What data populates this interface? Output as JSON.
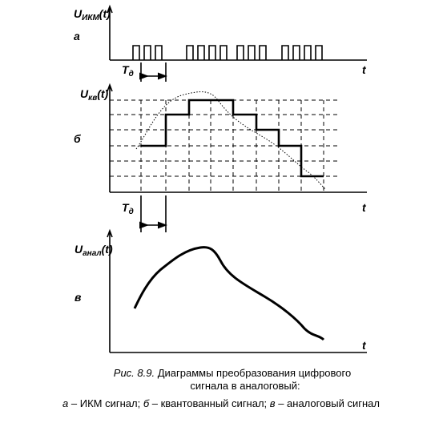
{
  "panels": [
    {
      "y_label": {
        "main": "U",
        "sub": "ИКМ",
        "arg": "(t)"
      },
      "letter": "а",
      "period_label": {
        "main": "T",
        "sub": "д"
      },
      "x_label": "t"
    },
    {
      "y_label": {
        "main": "U",
        "sub": "кв",
        "arg": "(t)"
      },
      "letter": "б",
      "period_label": {
        "main": "T",
        "sub": "д"
      },
      "x_label": "t"
    },
    {
      "y_label": {
        "main": "U",
        "sub": "анал",
        "arg": "(t)"
      },
      "letter": "в",
      "x_label": "t"
    }
  ],
  "caption": {
    "figure": "Рис. 8.9.",
    "lines": [
      "Диаграммы преобразования цифрового",
      "сигнала в аналоговый:"
    ],
    "legend": [
      {
        "letter": "а",
        "text": " – ИКМ сигнал; "
      },
      {
        "letter": "б",
        "text": " – квантованный сигнал; "
      },
      {
        "letter": "в",
        "text": " – аналоговый сигнал"
      }
    ]
  }
}
